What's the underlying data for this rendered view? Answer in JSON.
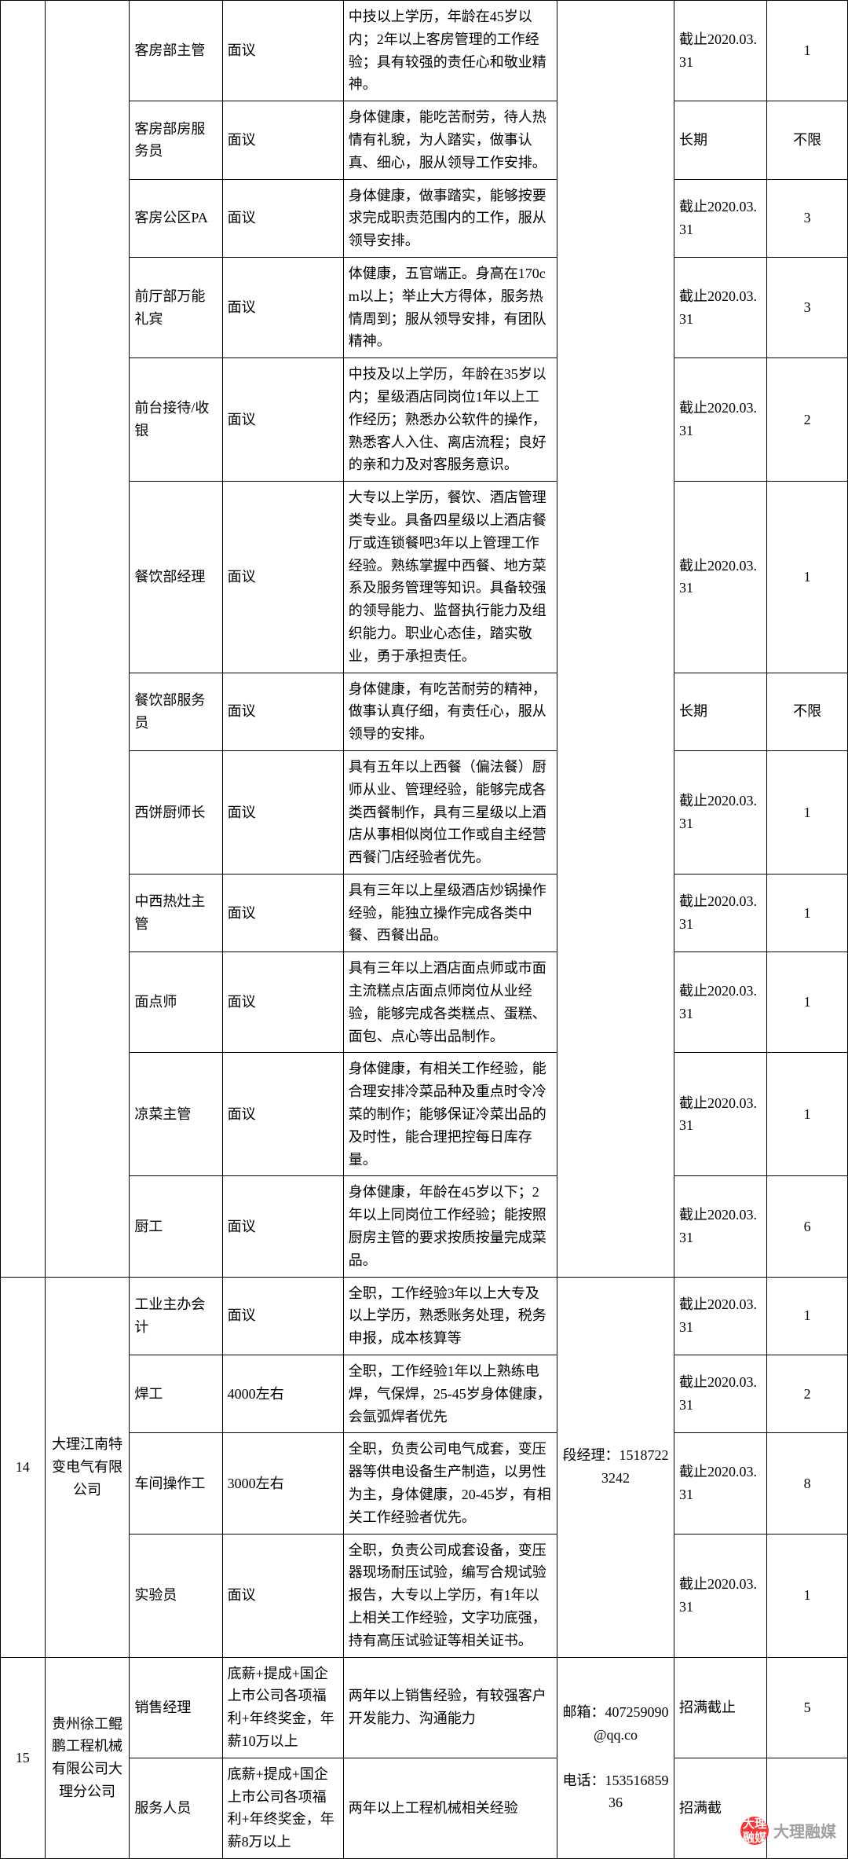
{
  "style": {
    "border_color": "#000000",
    "background": "#ffffff",
    "font_size_pt": 14,
    "cell_line_height": 1.6,
    "watermark_circle_bg": "#ff3333",
    "watermark_circle_fg": "#ffffff",
    "watermark_text_color": "#a0a0a0"
  },
  "watermark": {
    "circle_top": "大理",
    "circle_bottom": "融媒",
    "label": "大理融媒"
  },
  "groups": [
    {
      "index": "",
      "company": "",
      "contact": "",
      "rows": [
        {
          "position": "客房部主管",
          "salary": "面议",
          "requirement": "中技以上学历，年龄在45岁以内；2年以上客房管理的工作经验；具有较强的责任心和敬业精神。",
          "deadline": "截止2020.03.31",
          "count": "1"
        },
        {
          "position": "客房部房服务员",
          "salary": "面议",
          "requirement": "身体健康，能吃苦耐劳，待人热情有礼貌，为人踏实，做事认真、细心，服从领导工作安排。",
          "deadline": "长期",
          "count": "不限"
        },
        {
          "position": "客房公区PA",
          "salary": "面议",
          "requirement": "身体健康，做事踏实，能够按要求完成职责范围内的工作，服从领导安排。",
          "deadline": "截止2020.03.31",
          "count": "3"
        },
        {
          "position": "前厅部万能礼宾",
          "salary": "面议",
          "requirement": "体健康，五官端正。身高在170cm以上；举止大方得体，服务热情周到；服从领导安排，有团队精神。",
          "deadline": "截止2020.03.31",
          "count": "3"
        },
        {
          "position": "前台接待/收银",
          "salary": "面议",
          "requirement": "中技及以上学历，年龄在35岁以内；星级酒店同岗位1年以上工作经历；熟悉办公软件的操作，熟悉客人入住、离店流程；良好的亲和力及对客服务意识。",
          "deadline": "截止2020.03.31",
          "count": "2"
        },
        {
          "position": "餐饮部经理",
          "salary": "面议",
          "requirement": "大专以上学历，餐饮、酒店管理类专业。具备四星级以上酒店餐厅或连锁餐吧3年以上管理工作经验。熟练掌握中西餐、地方菜系及服务管理等知识。具备较强的领导能力、监督执行能力及组织能力。职业心态佳，踏实敬业，勇于承担责任。",
          "deadline": "截止2020.03.31",
          "count": "1"
        },
        {
          "position": "餐饮部服务员",
          "salary": "面议",
          "requirement": "身体健康，有吃苦耐劳的精神，做事认真仔细，有责任心，服从领导的安排。",
          "deadline": "长期",
          "count": "不限"
        },
        {
          "position": "西饼厨师长",
          "salary": "面议",
          "requirement": "具有五年以上西餐（偏法餐）厨师从业、管理经验，能够完成各类西餐制作，具有三星级以上酒店从事相似岗位工作或自主经营西餐门店经验者优先。",
          "deadline": "截止2020.03.31",
          "count": "1"
        },
        {
          "position": "中西热灶主管",
          "salary": "面议",
          "requirement": "具有三年以上星级酒店炒锅操作经验，能独立操作完成各类中餐、西餐出品。",
          "deadline": "截止2020.03.31",
          "count": "1"
        },
        {
          "position": "面点师",
          "salary": "面议",
          "requirement": "具有三年以上酒店面点师或巿面主流糕点店面点师岗位从业经验，能够完成各类糕点、蛋糕、面包、点心等出品制作。",
          "deadline": "截止2020.03.31",
          "count": "1"
        },
        {
          "position": "凉菜主管",
          "salary": "面议",
          "requirement": "身体健康，有相关工作经验，能合理安排冷菜品种及重点时令冷菜的制作；能够保证冷菜出品的及时性，能合理把控每日库存量。",
          "deadline": "截止2020.03.31",
          "count": "1"
        },
        {
          "position": "厨工",
          "salary": "面议",
          "requirement": "身体健康，年龄在45岁以下；2年以上同岗位工作经验；能按照厨房主管的要求按质按量完成菜品。",
          "deadline": "截止2020.03.31",
          "count": "6"
        }
      ]
    },
    {
      "index": "14",
      "company": "大理江南特变电气有限公司",
      "contact": "段经理：15187223242",
      "rows": [
        {
          "position": "工业主办会计",
          "salary": "面议",
          "requirement": "全职，工作经验3年以上大专及以上学历，熟悉账务处理，税务申报，成本核算等",
          "deadline": "截止2020.03.31",
          "count": "1"
        },
        {
          "position": "焊工",
          "salary": "4000左右",
          "requirement": "全职，工作经验1年以上熟练电焊，气保焊，25-45岁身体健康，会氩弧焊者优先",
          "deadline": "截止2020.03.31",
          "count": "2"
        },
        {
          "position": "车间操作工",
          "salary": "3000左右",
          "requirement": "全职，负责公司电气成套，变压器等供电设备生产制造，以男性为主，身体健康，20-45岁，有相关工作经验者优先。",
          "deadline": "截止2020.03.31",
          "count": "8"
        },
        {
          "position": "实验员",
          "salary": "面议",
          "requirement": "全职，负责公司成套设备，变压器现场耐压试验，编写合规试验报告，大专以上学历，有1年以上相关工作经验，文字功底强，持有高压试验证等相关证书。",
          "deadline": "截止2020.03.31",
          "count": "1"
        }
      ]
    },
    {
      "index": "15",
      "company": "贵州徐工鲲鹏工程机械有限公司大理分公司",
      "contact": "邮箱：407259090@qq.co\n\n电话：15351685936",
      "rows": [
        {
          "position": "销售经理",
          "salary": "底薪+提成+国企上巿公司各项福利+年终奖金，年薪10万以上",
          "requirement": "两年以上销售经验，有较强客户开发能力、沟通能力",
          "deadline": "招满截止",
          "count": "5"
        },
        {
          "position": "服务人员",
          "salary": "底薪+提成+国企上巿公司各项福利+年终奖金，年薪8万以上",
          "requirement": "两年以上工程机械相关经验",
          "deadline": "招满截",
          "count": ""
        }
      ]
    }
  ]
}
